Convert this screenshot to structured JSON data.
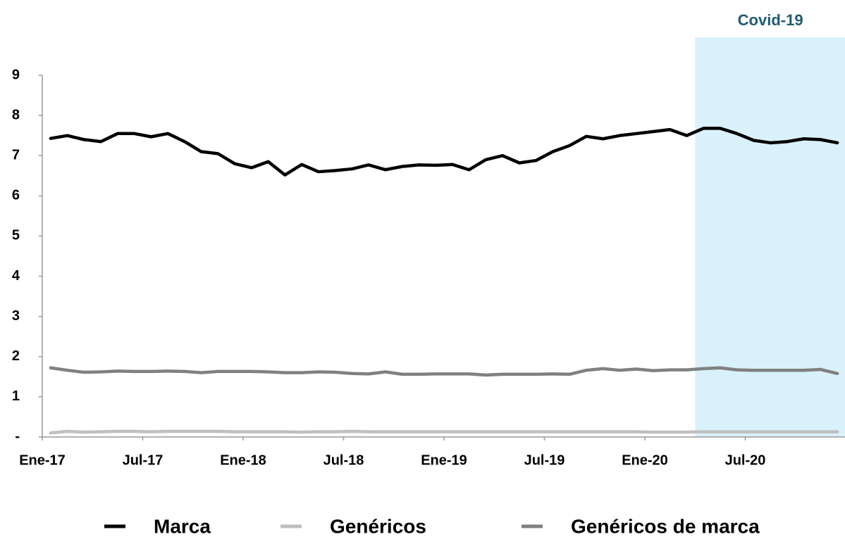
{
  "chart_data": {
    "type": "line",
    "categories": [
      "Ene-17",
      null,
      null,
      null,
      null,
      null,
      "Jul-17",
      null,
      null,
      null,
      null,
      null,
      "Ene-18",
      null,
      null,
      null,
      null,
      null,
      "Jul-18",
      null,
      null,
      null,
      null,
      null,
      "Ene-19",
      null,
      null,
      null,
      null,
      null,
      "Jul-19",
      null,
      null,
      null,
      null,
      null,
      "Ene-20",
      null,
      null,
      null,
      null,
      null,
      "Jul-20",
      null,
      null,
      null,
      null,
      null
    ],
    "series": [
      {
        "name": "Marca",
        "color": "#000000",
        "values": [
          7.43,
          7.5,
          7.4,
          7.35,
          7.55,
          7.55,
          7.47,
          7.55,
          7.35,
          7.1,
          7.05,
          6.8,
          6.7,
          6.85,
          6.52,
          6.78,
          6.6,
          6.63,
          6.67,
          6.77,
          6.65,
          6.73,
          6.77,
          6.76,
          6.78,
          6.65,
          6.9,
          7.0,
          6.82,
          6.88,
          7.1,
          7.25,
          7.48,
          7.42,
          7.5,
          7.55,
          7.6,
          7.65,
          7.5,
          7.68,
          7.68,
          7.55,
          7.38,
          7.32,
          7.35,
          7.42,
          7.4,
          7.32
        ]
      },
      {
        "name": "Genéricos",
        "color": "#bfbfbf",
        "values": [
          0.1,
          0.14,
          0.12,
          0.13,
          0.14,
          0.14,
          0.13,
          0.14,
          0.14,
          0.14,
          0.14,
          0.13,
          0.13,
          0.13,
          0.13,
          0.12,
          0.13,
          0.13,
          0.14,
          0.13,
          0.13,
          0.13,
          0.13,
          0.13,
          0.13,
          0.13,
          0.13,
          0.13,
          0.13,
          0.13,
          0.13,
          0.13,
          0.13,
          0.13,
          0.13,
          0.13,
          0.12,
          0.12,
          0.12,
          0.13,
          0.13,
          0.13,
          0.13,
          0.13,
          0.13,
          0.13,
          0.13,
          0.13
        ]
      },
      {
        "name": "Genéricos de marca",
        "color": "#808080",
        "values": [
          1.72,
          1.66,
          1.61,
          1.62,
          1.64,
          1.63,
          1.63,
          1.64,
          1.63,
          1.6,
          1.63,
          1.63,
          1.63,
          1.62,
          1.6,
          1.6,
          1.62,
          1.61,
          1.58,
          1.57,
          1.62,
          1.56,
          1.56,
          1.57,
          1.57,
          1.57,
          1.54,
          1.56,
          1.56,
          1.56,
          1.57,
          1.56,
          1.66,
          1.7,
          1.66,
          1.69,
          1.65,
          1.67,
          1.67,
          1.7,
          1.72,
          1.67,
          1.66,
          1.66,
          1.66,
          1.66,
          1.68,
          1.58
        ]
      }
    ],
    "ylim": [
      0,
      9
    ],
    "yticks": [
      {
        "value": 0,
        "label": "-"
      },
      1,
      2,
      3,
      4,
      5,
      6,
      7,
      8,
      9
    ],
    "highlight": {
      "label": "Covid-19",
      "start_index": 39,
      "color": "#d9f1fb",
      "label_color": "#1f5c73"
    },
    "legend": "bottom"
  }
}
